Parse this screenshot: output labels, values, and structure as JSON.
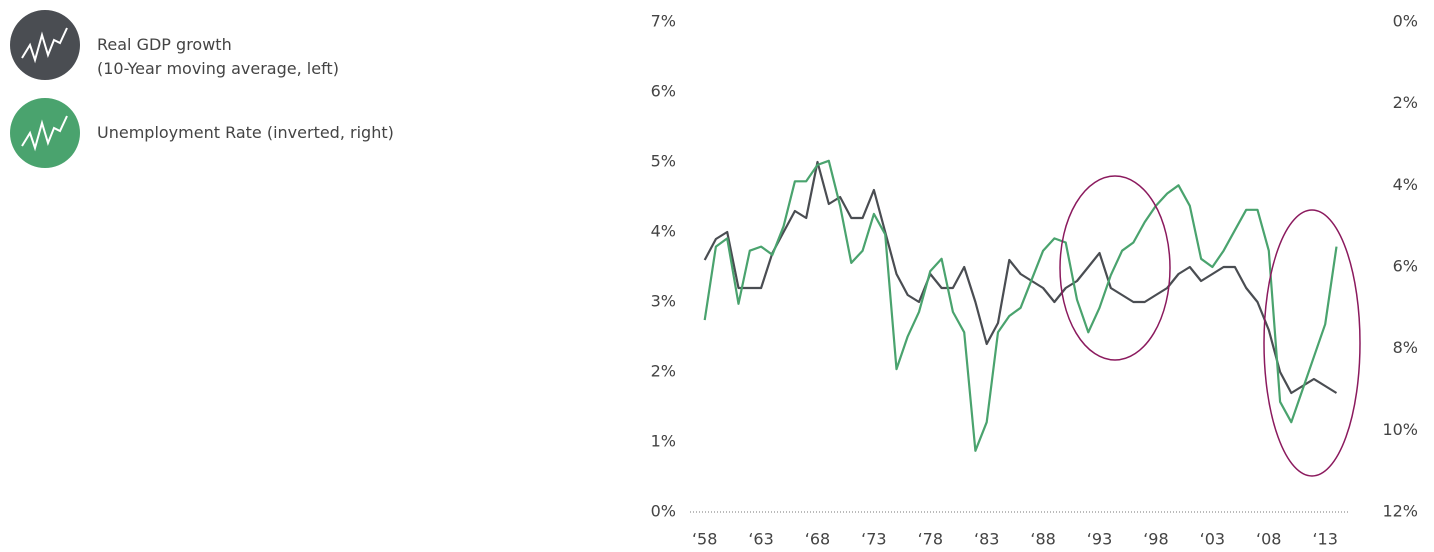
{
  "chart_data": {
    "type": "line",
    "x": [
      1958,
      1959,
      1960,
      1961,
      1962,
      1963,
      1964,
      1965,
      1966,
      1967,
      1968,
      1969,
      1970,
      1971,
      1972,
      1973,
      1974,
      1975,
      1976,
      1977,
      1978,
      1979,
      1980,
      1981,
      1982,
      1983,
      1984,
      1985,
      1986,
      1987,
      1988,
      1989,
      1990,
      1991,
      1992,
      1993,
      1994,
      1995,
      1996,
      1997,
      1998,
      1999,
      2000,
      2001,
      2002,
      2003,
      2004,
      2005,
      2006,
      2007,
      2008,
      2009,
      2010,
      2011,
      2012,
      2013,
      2014
    ],
    "series": [
      {
        "name": "Real GDP growth\n(10-Year moving average, left)",
        "color": "#4a4d52",
        "axis": "y",
        "values": [
          3.6,
          3.9,
          4.0,
          3.2,
          3.2,
          3.2,
          3.7,
          4.0,
          4.3,
          4.2,
          5.0,
          4.4,
          4.5,
          4.2,
          4.2,
          4.6,
          4.0,
          3.4,
          3.1,
          3.0,
          3.4,
          3.2,
          3.2,
          3.5,
          3.0,
          2.4,
          2.7,
          3.6,
          3.4,
          3.3,
          3.2,
          3.0,
          3.2,
          3.3,
          3.5,
          3.7,
          3.2,
          3.1,
          3.0,
          3.0,
          3.1,
          3.2,
          3.4,
          3.5,
          3.3,
          3.4,
          3.5,
          3.5,
          3.2,
          3.0,
          2.6,
          2.0,
          1.7,
          1.8,
          1.9,
          1.8,
          1.7
        ]
      },
      {
        "name": "Unemployment Rate (inverted, right)",
        "color": "#4aa36e",
        "axis": "y2",
        "values": [
          7.3,
          5.5,
          5.3,
          6.9,
          5.6,
          5.5,
          5.7,
          5.0,
          3.9,
          3.9,
          3.5,
          3.4,
          4.5,
          5.9,
          5.6,
          4.7,
          5.2,
          8.5,
          7.7,
          7.1,
          6.1,
          5.8,
          7.1,
          7.6,
          10.5,
          9.8,
          7.6,
          7.2,
          7.0,
          6.3,
          5.6,
          5.3,
          5.4,
          6.8,
          7.6,
          7.0,
          6.2,
          5.6,
          5.4,
          4.9,
          4.5,
          4.2,
          4.0,
          4.5,
          5.8,
          6.0,
          5.6,
          5.1,
          4.6,
          4.6,
          5.6,
          9.3,
          9.8,
          9.0,
          8.2,
          7.4,
          5.5
        ]
      }
    ],
    "xlim": [
      1956.7,
      2015.2
    ],
    "xticks": [
      {
        "value": 1958,
        "label": "‘58"
      },
      {
        "value": 1963,
        "label": "‘63"
      },
      {
        "value": 1968,
        "label": "‘68"
      },
      {
        "value": 1973,
        "label": "‘73"
      },
      {
        "value": 1978,
        "label": "‘78"
      },
      {
        "value": 1983,
        "label": "‘83"
      },
      {
        "value": 1988,
        "label": "‘88"
      },
      {
        "value": 1993,
        "label": "‘93"
      },
      {
        "value": 1998,
        "label": "‘98"
      },
      {
        "value": 2003,
        "label": "‘03"
      },
      {
        "value": 2008,
        "label": "‘08"
      },
      {
        "value": 2013,
        "label": "‘13"
      }
    ],
    "ylim": [
      0,
      7
    ],
    "yticks": [
      {
        "value": 0,
        "label": "0%"
      },
      {
        "value": 1,
        "label": "1%"
      },
      {
        "value": 2,
        "label": "2%"
      },
      {
        "value": 3,
        "label": "3%"
      },
      {
        "value": 4,
        "label": "4%"
      },
      {
        "value": 5,
        "label": "5%"
      },
      {
        "value": 6,
        "label": "6%"
      },
      {
        "value": 7,
        "label": "7%"
      }
    ],
    "y2lim": [
      12,
      0
    ],
    "y2ticks": [
      {
        "value": 0,
        "label": "0%"
      },
      {
        "value": 2,
        "label": "2%"
      },
      {
        "value": 4,
        "label": "4%"
      },
      {
        "value": 6,
        "label": "6%"
      },
      {
        "value": 8,
        "label": "8%"
      },
      {
        "value": 10,
        "label": "10%"
      },
      {
        "value": 12,
        "label": "12%"
      }
    ]
  }
}
